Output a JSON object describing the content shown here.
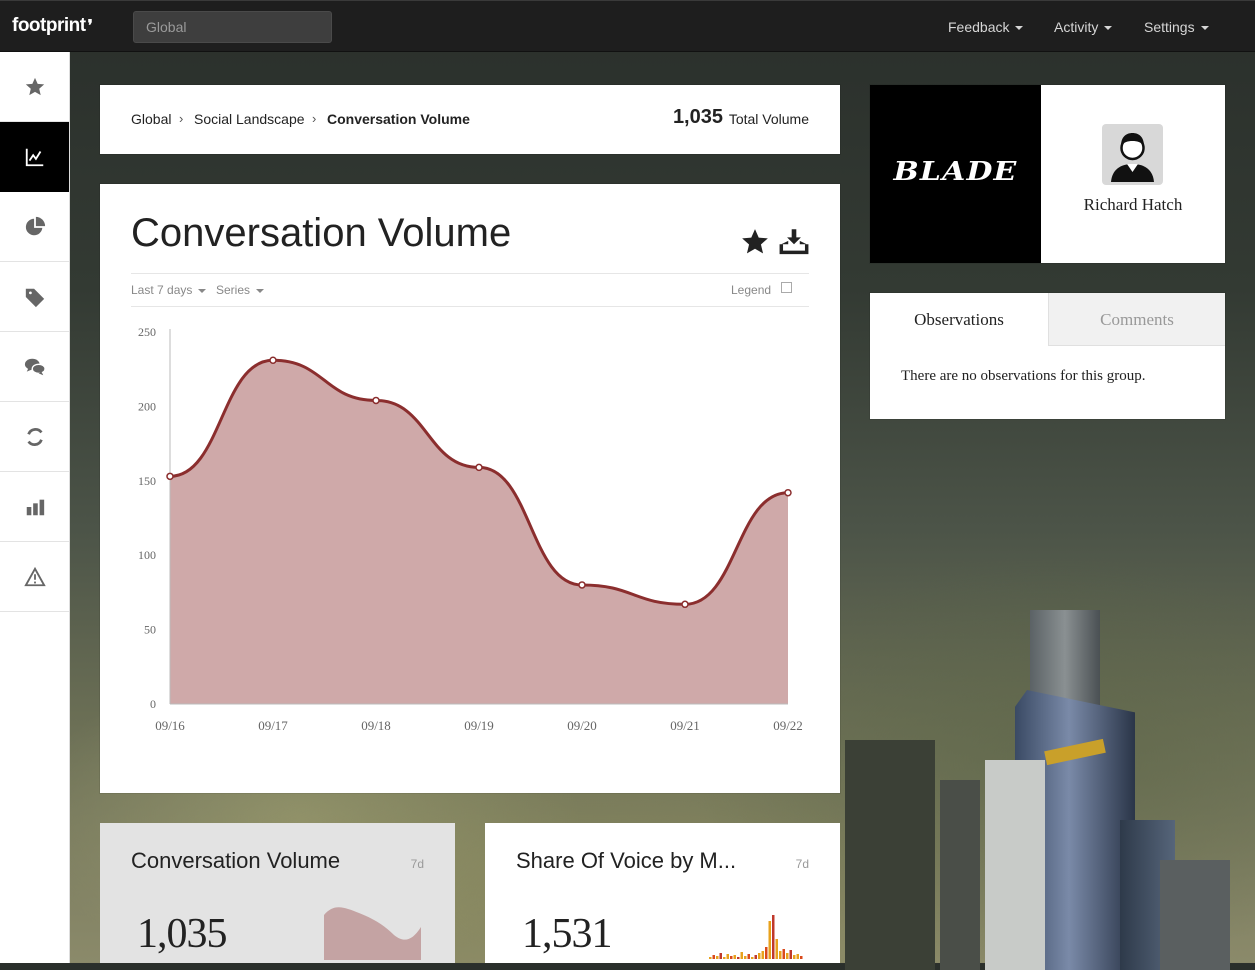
{
  "topbar": {
    "logo": "footprint",
    "search_placeholder": "Global",
    "nav": [
      {
        "label": "Feedback"
      },
      {
        "label": "Activity"
      },
      {
        "label": "Settings"
      }
    ]
  },
  "sidebar": {
    "items": [
      {
        "icon": "star-icon",
        "active": false
      },
      {
        "icon": "line-chart-icon",
        "active": true
      },
      {
        "icon": "pie-chart-icon",
        "active": false
      },
      {
        "icon": "tag-icon",
        "active": false
      },
      {
        "icon": "chat-bubbles-icon",
        "active": false
      },
      {
        "icon": "refresh-icon",
        "active": false
      },
      {
        "icon": "bar-chart-icon",
        "active": false
      },
      {
        "icon": "warning-icon",
        "active": false
      }
    ]
  },
  "breadcrumb": {
    "items": [
      "Global",
      "Social Landscape",
      "Conversation Volume"
    ],
    "separator": "›",
    "total_value": "1,035",
    "total_label": "Total Volume"
  },
  "chart_card": {
    "title": "Conversation Volume",
    "range_label": "Last 7 days",
    "series_label": "Series",
    "legend_label": "Legend"
  },
  "chart_data": {
    "type": "area",
    "categories": [
      "09/16",
      "09/17",
      "09/18",
      "09/19",
      "09/20",
      "09/21",
      "09/22"
    ],
    "values": [
      153,
      231,
      204,
      159,
      80,
      67,
      142
    ],
    "ylim": [
      0,
      250
    ],
    "yticks": [
      "0",
      "50",
      "100",
      "150",
      "200",
      "250"
    ],
    "grid": false,
    "legend": "hidden",
    "line_color": "#8b2e2e",
    "fill_color": "#cfa9a9"
  },
  "profile": {
    "brand": "BLADE",
    "name": "Richard Hatch"
  },
  "observations": {
    "tabs": [
      "Observations",
      "Comments"
    ],
    "empty_message": "There are no observations for this group."
  },
  "widgets": [
    {
      "title": "Conversation Volume",
      "period": "7d",
      "value": "1,035"
    },
    {
      "title": "Share Of Voice by M...",
      "period": "7d",
      "value": "1,531"
    }
  ]
}
